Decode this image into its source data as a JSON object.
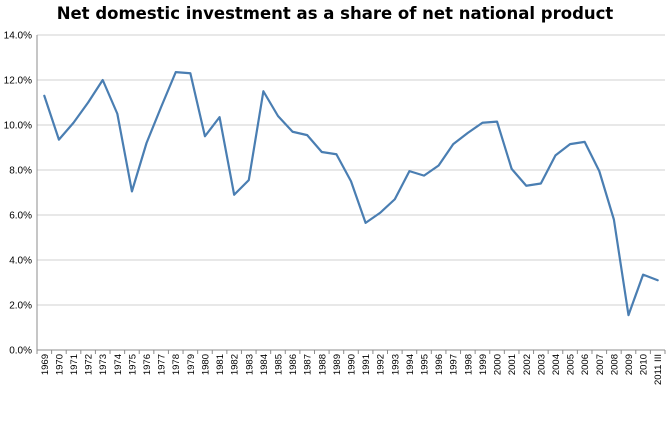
{
  "chart_data": {
    "type": "line",
    "title": "Net domestic investment as a share of net national product",
    "xlabel": "",
    "ylabel": "",
    "ylim": [
      0,
      14
    ],
    "yticks": [
      "0.0%",
      "2.0%",
      "4.0%",
      "6.0%",
      "8.0%",
      "10.0%",
      "12.0%",
      "14.0%"
    ],
    "grid": true,
    "legend": "none",
    "categories": [
      "1969",
      "1970",
      "1971",
      "1972",
      "1973",
      "1974",
      "1975",
      "1976",
      "1977",
      "1978",
      "1979",
      "1980",
      "1981",
      "1982",
      "1983",
      "1984",
      "1985",
      "1986",
      "1987",
      "1988",
      "1989",
      "1990",
      "1991",
      "1992",
      "1993",
      "1994",
      "1995",
      "1996",
      "1997",
      "1998",
      "1999",
      "2000",
      "2001",
      "2002",
      "2003",
      "2004",
      "2005",
      "2006",
      "2007",
      "2008",
      "2009",
      "2010",
      "2011 III"
    ],
    "series": [
      {
        "values": [
          11.3,
          9.35,
          10.1,
          11.0,
          12.0,
          10.5,
          7.05,
          9.2,
          10.8,
          12.35,
          12.3,
          9.5,
          10.35,
          6.9,
          7.55,
          11.5,
          10.4,
          9.7,
          9.55,
          8.8,
          8.7,
          7.5,
          5.65,
          6.1,
          6.7,
          7.95,
          7.75,
          8.2,
          9.15,
          9.65,
          10.1,
          10.15,
          8.05,
          7.3,
          7.4,
          8.65,
          9.15,
          9.25,
          7.95,
          5.8,
          1.55,
          3.35,
          3.1
        ],
        "color": "#4a7eb2"
      }
    ]
  }
}
